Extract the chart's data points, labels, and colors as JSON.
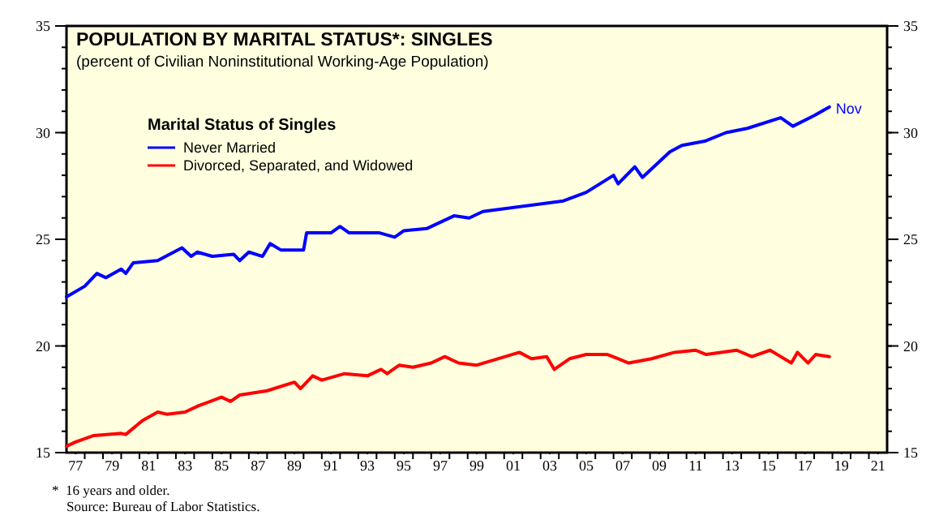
{
  "chart_data": {
    "type": "line",
    "title": "POPULATION BY MARITAL STATUS*: SINGLES",
    "subtitle": "(percent of Civilian Noninstitutional Working-Age Population)",
    "legend_title": "Marital Status of Singles",
    "xlim": [
      "1977-01",
      "2022-01"
    ],
    "xticks": [
      {
        "value": "1977-07",
        "label": "77"
      },
      {
        "value": "1979-07",
        "label": "79"
      },
      {
        "value": "1981-07",
        "label": "81"
      },
      {
        "value": "1983-07",
        "label": "83"
      },
      {
        "value": "1985-07",
        "label": "85"
      },
      {
        "value": "1987-07",
        "label": "87"
      },
      {
        "value": "1989-07",
        "label": "89"
      },
      {
        "value": "1991-07",
        "label": "91"
      },
      {
        "value": "1993-07",
        "label": "93"
      },
      {
        "value": "1995-07",
        "label": "95"
      },
      {
        "value": "1997-07",
        "label": "97"
      },
      {
        "value": "1999-07",
        "label": "99"
      },
      {
        "value": "2001-07",
        "label": "01"
      },
      {
        "value": "2003-07",
        "label": "03"
      },
      {
        "value": "2005-07",
        "label": "05"
      },
      {
        "value": "2007-07",
        "label": "07"
      },
      {
        "value": "2009-07",
        "label": "09"
      },
      {
        "value": "2011-07",
        "label": "11"
      },
      {
        "value": "2013-07",
        "label": "13"
      },
      {
        "value": "2015-07",
        "label": "15"
      },
      {
        "value": "2017-07",
        "label": "17"
      },
      {
        "value": "2019-07",
        "label": "19"
      },
      {
        "value": "2021-07",
        "label": "21"
      }
    ],
    "ylim": [
      15,
      35
    ],
    "yticks": [
      15,
      20,
      25,
      30,
      35
    ],
    "y2lim": [
      15,
      35
    ],
    "y2ticks": [
      15,
      20,
      25,
      30,
      35
    ],
    "legend": "top left",
    "grid": false,
    "marker": "none",
    "line_style": "solid",
    "series": [
      {
        "name": "Never Married",
        "color": "#0000ff",
        "x": [
          "1977-01",
          "1978-01",
          "1978-09",
          "1979-03",
          "1980-01",
          "1980-04",
          "1980-09",
          "1982-01",
          "1983-05",
          "1983-11",
          "1984-03",
          "1985-01",
          "1986-03",
          "1986-07",
          "1987-01",
          "1987-10",
          "1988-03",
          "1988-10",
          "1990-01",
          "1990-03",
          "1991-07",
          "1992-01",
          "1992-07",
          "1993-07",
          "1994-03",
          "1995-01",
          "1995-07",
          "1996-10",
          "1998-04",
          "1999-02",
          "1999-11",
          "2004-04",
          "2005-07",
          "2007-01",
          "2007-04",
          "2008-03",
          "2008-08",
          "2009-08",
          "2010-02",
          "2010-10",
          "2012-01",
          "2013-03",
          "2014-05",
          "2016-03",
          "2016-11",
          "2018-01",
          "2018-11"
        ],
        "values": [
          22.3,
          22.8,
          23.4,
          23.2,
          23.6,
          23.4,
          23.9,
          24.0,
          24.6,
          24.2,
          24.4,
          24.2,
          24.3,
          24.0,
          24.4,
          24.2,
          24.8,
          24.5,
          24.5,
          25.3,
          25.3,
          25.6,
          25.3,
          25.3,
          25.3,
          25.1,
          25.4,
          25.5,
          26.1,
          26.0,
          26.3,
          26.8,
          27.2,
          28.0,
          27.6,
          28.4,
          27.9,
          28.7,
          29.1,
          29.4,
          29.6,
          30.0,
          30.2,
          30.7,
          30.3,
          30.8,
          31.2
        ]
      },
      {
        "name": "Divorced, Separated, and Widowed",
        "color": "#ff0000",
        "x": [
          "1977-01",
          "1977-07",
          "1978-07",
          "1980-01",
          "1980-04",
          "1981-03",
          "1982-01",
          "1982-07",
          "1983-07",
          "1984-04",
          "1985-07",
          "1986-01",
          "1986-07",
          "1988-01",
          "1989-07",
          "1989-11",
          "1990-07",
          "1991-01",
          "1992-04",
          "1993-07",
          "1994-04",
          "1994-08",
          "1995-04",
          "1996-01",
          "1997-01",
          "1997-10",
          "1998-07",
          "1999-07",
          "2001-11",
          "2002-07",
          "2003-05",
          "2003-10",
          "2004-08",
          "2005-07",
          "2006-09",
          "2007-11",
          "2009-02",
          "2010-05",
          "2011-07",
          "2012-02",
          "2013-10",
          "2014-08",
          "2015-08",
          "2016-03",
          "2016-10",
          "2017-02",
          "2017-09",
          "2018-02",
          "2018-11"
        ],
        "values": [
          15.3,
          15.5,
          15.8,
          15.9,
          15.85,
          16.5,
          16.9,
          16.8,
          16.9,
          17.2,
          17.6,
          17.4,
          17.7,
          17.9,
          18.3,
          18.0,
          18.6,
          18.4,
          18.7,
          18.6,
          18.9,
          18.7,
          19.1,
          19.0,
          19.2,
          19.5,
          19.2,
          19.1,
          19.7,
          19.4,
          19.5,
          18.9,
          19.4,
          19.6,
          19.6,
          19.2,
          19.4,
          19.7,
          19.8,
          19.6,
          19.8,
          19.5,
          19.8,
          19.5,
          19.2,
          19.7,
          19.2,
          19.6,
          19.5
        ]
      }
    ],
    "annotations": [
      {
        "text": "Nov",
        "x": "2018-11",
        "y": 31.2
      },
      "*  16 years and older.",
      "Source: Bureau of Labor Statistics."
    ]
  }
}
